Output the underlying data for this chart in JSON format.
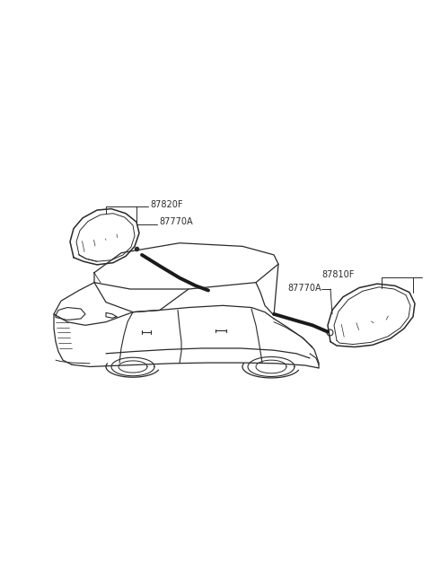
{
  "background_color": "#ffffff",
  "fig_width": 4.8,
  "fig_height": 6.55,
  "dpi": 100,
  "labels": {
    "left_top": "87820F",
    "left_bottom": "87770A",
    "right_top": "87810F",
    "right_bottom": "87770A"
  },
  "label_fontsize": 7.0,
  "line_color": "#2a2a2a",
  "car_line_color": "#2a2a2a"
}
